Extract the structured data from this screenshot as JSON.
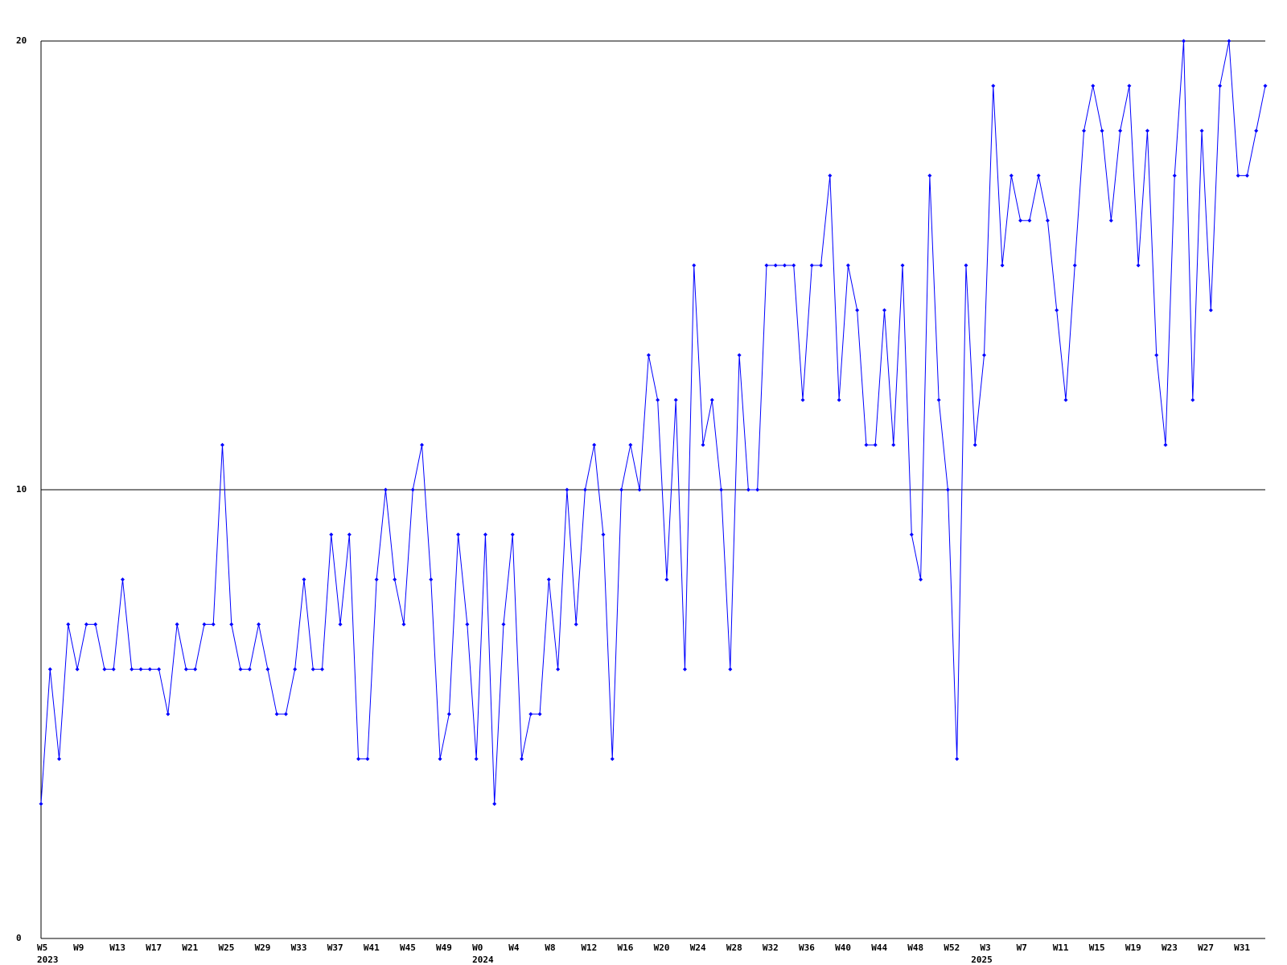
{
  "chart_data": {
    "type": "line",
    "categories": [
      "W5",
      null,
      null,
      null,
      "W9",
      null,
      null,
      null,
      "W13",
      null,
      null,
      null,
      "W17",
      null,
      null,
      null,
      "W21",
      null,
      null,
      null,
      "W25",
      null,
      null,
      null,
      "W29",
      null,
      null,
      null,
      "W33",
      null,
      null,
      null,
      "W37",
      null,
      null,
      null,
      "W41",
      null,
      null,
      null,
      "W45",
      null,
      null,
      null,
      "W49",
      null,
      null,
      null,
      "W0",
      null,
      null,
      null,
      "W4",
      null,
      null,
      null,
      "W8",
      null,
      null,
      null,
      "W12",
      null,
      null,
      null,
      "W16",
      null,
      null,
      null,
      "W20",
      null,
      null,
      null,
      "W24",
      null,
      null,
      null,
      "W28",
      null,
      null,
      null,
      "W32",
      null,
      null,
      null,
      "W36",
      null,
      null,
      null,
      "W40",
      null,
      null,
      null,
      "W44",
      null,
      null,
      null,
      "W48",
      null,
      null,
      null,
      "W52",
      null,
      null,
      null,
      "W3",
      null,
      null,
      null,
      "W7",
      null,
      null,
      null,
      "W11",
      null,
      null,
      null,
      "W15",
      null,
      null,
      null,
      "W19",
      null,
      null,
      null,
      "W23",
      null,
      null,
      null,
      "W27",
      null,
      null,
      null,
      "W31",
      null,
      null,
      null
    ],
    "years": [
      "2023",
      null,
      null,
      null,
      null,
      null,
      null,
      null,
      null,
      null,
      null,
      null,
      null,
      null,
      null,
      null,
      null,
      null,
      null,
      null,
      null,
      null,
      null,
      null,
      null,
      null,
      null,
      null,
      null,
      null,
      null,
      null,
      null,
      null,
      null,
      null,
      null,
      null,
      null,
      null,
      null,
      null,
      null,
      null,
      null,
      null,
      null,
      null,
      "2024",
      null,
      null,
      null,
      null,
      null,
      null,
      null,
      null,
      null,
      null,
      null,
      null,
      null,
      null,
      null,
      null,
      null,
      null,
      null,
      null,
      null,
      null,
      null,
      null,
      null,
      null,
      null,
      null,
      null,
      null,
      null,
      null,
      null,
      null,
      null,
      null,
      null,
      null,
      null,
      null,
      null,
      null,
      null,
      null,
      null,
      null,
      null,
      null,
      null,
      null,
      null,
      null,
      null,
      null,
      "2025",
      null,
      null,
      null,
      null,
      null,
      null,
      null,
      null,
      null,
      null,
      null,
      null,
      null,
      null,
      null,
      null,
      null,
      null,
      null,
      null,
      null,
      null,
      null,
      null,
      null,
      null,
      null,
      null,
      null,
      null,
      null,
      null,
      null
    ],
    "series": [
      {
        "color": "#0000ff",
        "values": [
          3,
          6,
          4,
          7,
          6,
          7,
          7,
          6,
          6,
          8,
          6,
          6,
          6,
          6,
          5,
          7,
          6,
          6,
          7,
          7,
          11,
          7,
          6,
          6,
          7,
          6,
          5,
          5,
          6,
          8,
          6,
          6,
          9,
          7,
          9,
          4,
          4,
          8,
          10,
          8,
          7,
          10,
          11,
          8,
          4,
          5,
          9,
          7,
          4,
          9,
          3,
          7,
          9,
          4,
          5,
          5,
          8,
          6,
          10,
          7,
          10,
          11,
          9,
          4,
          10,
          11,
          10,
          13,
          12,
          8,
          12,
          6,
          15,
          11,
          12,
          10,
          6,
          13,
          10,
          10,
          15,
          15,
          15,
          15,
          12,
          15,
          15,
          17,
          12,
          15,
          14,
          11,
          11,
          14,
          11,
          15,
          9,
          8,
          17,
          12,
          10,
          4,
          15,
          11,
          13,
          19,
          15,
          17,
          16,
          16,
          17,
          16,
          14,
          12,
          15,
          18,
          19,
          18,
          16,
          18,
          19,
          15,
          18,
          13,
          11,
          17,
          20,
          12,
          18,
          14,
          19,
          20,
          17,
          17,
          18,
          19
        ]
      }
    ],
    "ylim": [
      0,
      20
    ],
    "yticks": [
      0,
      10,
      20
    ],
    "grid": true
  }
}
